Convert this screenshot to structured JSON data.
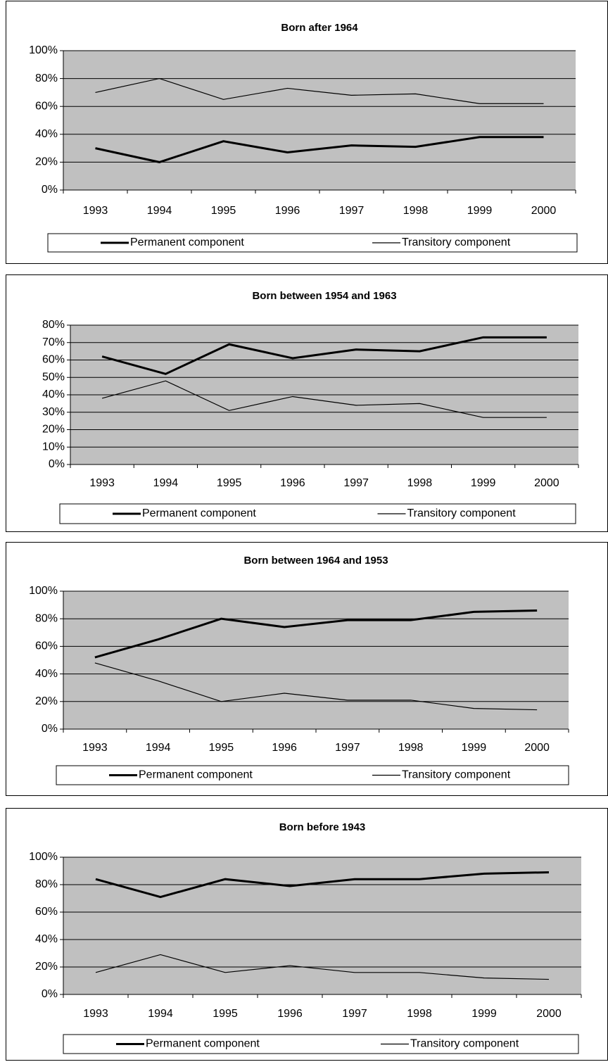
{
  "chart_data": [
    {
      "type": "line",
      "title": "Born after 1964",
      "categories": [
        "1993",
        "1994",
        "1995",
        "1996",
        "1997",
        "1998",
        "1999",
        "2000"
      ],
      "series": [
        {
          "name": "Permanent component",
          "color": "#000000",
          "values": [
            30,
            20,
            35,
            27,
            32,
            31,
            38,
            38
          ]
        },
        {
          "name": "Transitory component",
          "color": "#000000",
          "values": [
            70,
            80,
            65,
            73,
            68,
            69,
            62,
            62
          ]
        }
      ],
      "ylim": [
        0,
        100
      ],
      "yticks": [
        {
          "value": 0,
          "label": "0%"
        },
        {
          "value": 20,
          "label": "20%"
        },
        {
          "value": 40,
          "label": "40%"
        },
        {
          "value": 60,
          "label": "60%"
        },
        {
          "value": 80,
          "label": "80%"
        },
        {
          "value": 100,
          "label": "100%"
        }
      ],
      "grid": true,
      "legend": "bottom"
    },
    {
      "type": "line",
      "title": "Born between 1954 and 1963",
      "categories": [
        "1993",
        "1994",
        "1995",
        "1996",
        "1997",
        "1998",
        "1999",
        "2000"
      ],
      "series": [
        {
          "name": "Permanent component",
          "color": "#000000",
          "values": [
            62,
            52,
            69,
            61,
            66,
            65,
            73,
            73
          ]
        },
        {
          "name": "Transitory component",
          "color": "#000000",
          "values": [
            38,
            48,
            31,
            39,
            34,
            35,
            27,
            27
          ]
        }
      ],
      "ylim": [
        0,
        80
      ],
      "yticks": [
        {
          "value": 0,
          "label": "0%"
        },
        {
          "value": 10,
          "label": "10%"
        },
        {
          "value": 20,
          "label": "20%"
        },
        {
          "value": 30,
          "label": "30%"
        },
        {
          "value": 40,
          "label": "40%"
        },
        {
          "value": 50,
          "label": "50%"
        },
        {
          "value": 60,
          "label": "60%"
        },
        {
          "value": 70,
          "label": "70%"
        },
        {
          "value": 80,
          "label": "80%"
        }
      ],
      "grid": true,
      "legend": "bottom"
    },
    {
      "type": "line",
      "title": "Born between 1964 and 1953",
      "categories": [
        "1993",
        "1994",
        "1995",
        "1996",
        "1997",
        "1998",
        "1999",
        "2000"
      ],
      "series": [
        {
          "name": "Permanent component",
          "color": "#000000",
          "values": [
            52,
            65,
            80,
            74,
            79,
            79,
            85,
            86
          ]
        },
        {
          "name": "Transitory component",
          "color": "#000000",
          "values": [
            48,
            35,
            20,
            26,
            21,
            21,
            15,
            14
          ]
        }
      ],
      "ylim": [
        0,
        100
      ],
      "yticks": [
        {
          "value": 0,
          "label": "0%"
        },
        {
          "value": 20,
          "label": "20%"
        },
        {
          "value": 40,
          "label": "40%"
        },
        {
          "value": 60,
          "label": "60%"
        },
        {
          "value": 80,
          "label": "80%"
        },
        {
          "value": 100,
          "label": "100%"
        }
      ],
      "grid": true,
      "legend": "bottom"
    },
    {
      "type": "line",
      "title": "Born before 1943",
      "categories": [
        "1993",
        "1994",
        "1995",
        "1996",
        "1997",
        "1998",
        "1999",
        "2000"
      ],
      "series": [
        {
          "name": "Permanent component",
          "color": "#000000",
          "values": [
            84,
            71,
            84,
            79,
            84,
            84,
            88,
            89
          ]
        },
        {
          "name": "Transitory component",
          "color": "#000000",
          "values": [
            16,
            29,
            16,
            21,
            16,
            16,
            12,
            11
          ]
        }
      ],
      "ylim": [
        0,
        100
      ],
      "yticks": [
        {
          "value": 0,
          "label": "0%"
        },
        {
          "value": 20,
          "label": "20%"
        },
        {
          "value": 40,
          "label": "40%"
        },
        {
          "value": 60,
          "label": "60%"
        },
        {
          "value": 80,
          "label": "80%"
        },
        {
          "value": 100,
          "label": "100%"
        }
      ],
      "grid": true,
      "legend": "bottom"
    }
  ]
}
